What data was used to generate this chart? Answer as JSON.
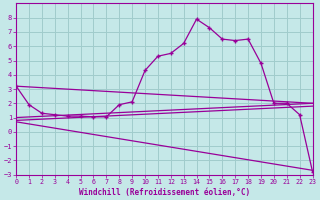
{
  "title": "",
  "xlabel": "Windchill (Refroidissement éolien,°C)",
  "background_color": "#c5e8e8",
  "grid_color": "#a0cccc",
  "line_color": "#990099",
  "xlim": [
    0,
    23
  ],
  "ylim": [
    -3,
    9
  ],
  "xticks": [
    0,
    1,
    2,
    3,
    4,
    5,
    6,
    7,
    8,
    9,
    10,
    11,
    12,
    13,
    14,
    15,
    16,
    17,
    18,
    19,
    20,
    21,
    22,
    23
  ],
  "yticks": [
    -3,
    -2,
    -1,
    0,
    1,
    2,
    3,
    4,
    5,
    6,
    7,
    8
  ],
  "main_x": [
    0,
    1,
    2,
    3,
    4,
    5,
    6,
    7,
    8,
    9,
    10,
    11,
    12,
    13,
    14,
    15,
    16,
    17,
    18,
    19,
    20,
    21,
    22,
    23
  ],
  "main_y": [
    3.2,
    1.9,
    1.3,
    1.2,
    1.1,
    1.1,
    1.05,
    1.05,
    1.9,
    2.1,
    4.3,
    5.3,
    5.5,
    6.2,
    7.9,
    7.3,
    6.5,
    6.4,
    6.5,
    4.8,
    2.0,
    2.0,
    1.2,
    -2.8
  ],
  "trend_lines": [
    {
      "x": [
        0,
        23
      ],
      "y": [
        3.2,
        2.0
      ]
    },
    {
      "x": [
        0,
        23
      ],
      "y": [
        1.0,
        2.0
      ]
    },
    {
      "x": [
        0,
        23
      ],
      "y": [
        0.8,
        1.8
      ]
    },
    {
      "x": [
        0,
        23
      ],
      "y": [
        0.7,
        -2.7
      ]
    }
  ]
}
